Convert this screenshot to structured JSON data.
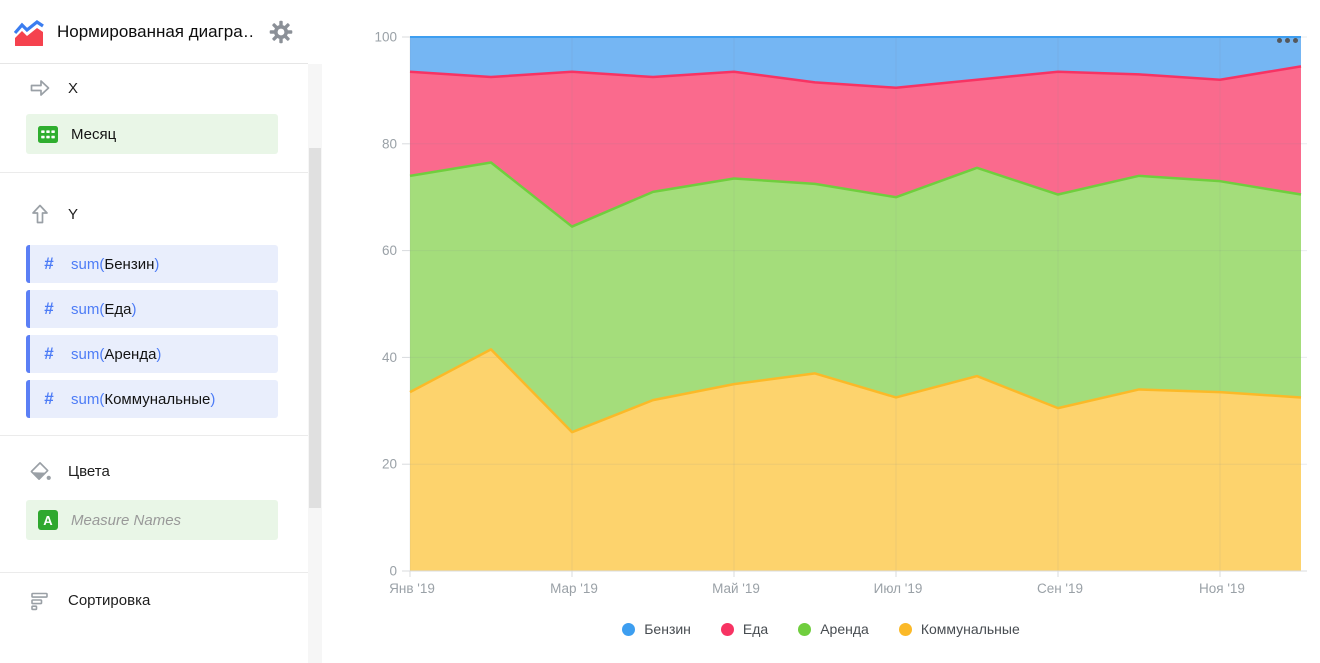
{
  "header": {
    "title": "Нормированная диагра…"
  },
  "sidebar": {
    "x_section": {
      "label": "X",
      "field": {
        "name": "Месяц",
        "icon": "calendar-icon"
      }
    },
    "y_section": {
      "label": "Y",
      "fields": [
        {
          "open": "sum(",
          "name": "Бензин",
          "close": ")"
        },
        {
          "open": "sum(",
          "name": "Еда",
          "close": ")"
        },
        {
          "open": "sum(",
          "name": "Аренда",
          "close": ")"
        },
        {
          "open": "sum(",
          "name": "Коммунальные",
          "close": ")"
        }
      ]
    },
    "colors_section": {
      "label": "Цвета",
      "field": {
        "name": "Measure Names",
        "icon": "a-icon",
        "placeholder_style": true
      }
    },
    "sort_section": {
      "label": "Сортировка"
    }
  },
  "chart_data": {
    "type": "area",
    "stacking": "percent",
    "title": "",
    "x_points": 12,
    "x_ticks": [
      {
        "index": 0,
        "label": "Янв '19"
      },
      {
        "index": 2,
        "label": "Мар '19"
      },
      {
        "index": 4,
        "label": "Май '19"
      },
      {
        "index": 6,
        "label": "Июл '19"
      },
      {
        "index": 8,
        "label": "Сен '19"
      },
      {
        "index": 10,
        "label": "Ноя '19"
      }
    ],
    "y_ticks": [
      0,
      20,
      40,
      60,
      80,
      100
    ],
    "ylim": [
      0,
      100
    ],
    "grid": true,
    "legend_position": "bottom",
    "stack_order_bottom_to_top": [
      "Коммунальные",
      "Аренда",
      "Еда",
      "Бензин"
    ],
    "series": [
      {
        "name": "Бензин",
        "color": "#3d9ef0",
        "fill": "#75b6f3",
        "values_percent": [
          6.5,
          7.5,
          6.5,
          7.5,
          6.5,
          8.5,
          9.5,
          8,
          6.5,
          7,
          8,
          5.5
        ]
      },
      {
        "name": "Еда",
        "color": "#f73363",
        "fill": "#fa6a8d",
        "values_percent": [
          19.5,
          16,
          29,
          21.5,
          20,
          19,
          20.5,
          16.5,
          23,
          19,
          19,
          24
        ]
      },
      {
        "name": "Аренда",
        "color": "#70ce3e",
        "fill": "#a4dd7b",
        "values_percent": [
          40.5,
          35,
          38.5,
          39,
          38.5,
          35.5,
          37.5,
          39,
          40,
          40,
          39.5,
          38
        ]
      },
      {
        "name": "Коммунальные",
        "color": "#fbb928",
        "fill": "#fdd36d",
        "values_percent": [
          33.5,
          41.5,
          26,
          32,
          35,
          37,
          32.5,
          36.5,
          30.5,
          34,
          33.5,
          32.5
        ]
      }
    ],
    "colors": {
      "grid": "#e9ecef",
      "axis": "#d8dbde",
      "axis_text": "#9aa1a7"
    }
  }
}
